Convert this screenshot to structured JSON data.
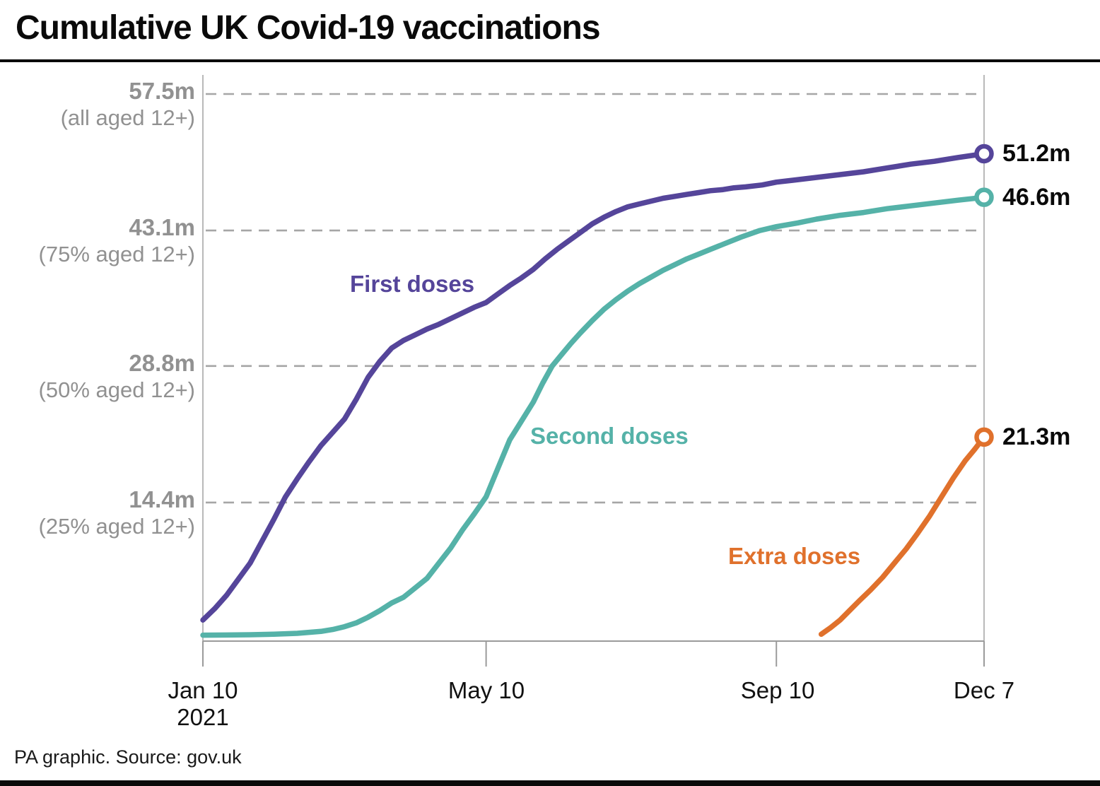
{
  "page": {
    "title": "Cumulative UK Covid-19 vaccinations",
    "footer": "PA graphic. Source: gov.uk"
  },
  "chart_data": {
    "type": "line",
    "title": "Cumulative UK Covid-19 vaccinations",
    "x_unit": "days since Jan 10 2021",
    "x_range_days": [
      0,
      331
    ],
    "x_ticks": [
      {
        "day": 0,
        "label": "Jan 10",
        "sublabel": "2021"
      },
      {
        "day": 120,
        "label": "May 10",
        "sublabel": ""
      },
      {
        "day": 243,
        "label": "Sep 10",
        "sublabel": ""
      },
      {
        "day": 331,
        "label": "Dec 7",
        "sublabel": ""
      }
    ],
    "y_unit": "million doses",
    "y_max": 57.5,
    "grid": "dashed horizontal",
    "y_gridlines": [
      {
        "value": 57.5,
        "label": "57.5m",
        "sublabel": "(all aged 12+)"
      },
      {
        "value": 43.1,
        "label": "43.1m",
        "sublabel": "(75% aged 12+)"
      },
      {
        "value": 28.8,
        "label": "28.8m",
        "sublabel": "(50% aged 12+)"
      },
      {
        "value": 14.4,
        "label": "14.4m",
        "sublabel": "(25% aged 12+)"
      }
    ],
    "colors": {
      "grid": "#a6a6a6",
      "axis": "#9b9b9b",
      "guide": "#b9b9b9",
      "y_label_text": "#919191"
    },
    "series": [
      {
        "name": "First doses",
        "color": "#55459a",
        "end_label": "51.2m",
        "end_value": 51.2,
        "points": [
          [
            0,
            2.0
          ],
          [
            5,
            3.2
          ],
          [
            10,
            4.6
          ],
          [
            15,
            6.3
          ],
          [
            20,
            8.0
          ],
          [
            25,
            10.3
          ],
          [
            30,
            12.6
          ],
          [
            35,
            15.0
          ],
          [
            40,
            16.9
          ],
          [
            45,
            18.7
          ],
          [
            50,
            20.4
          ],
          [
            55,
            21.8
          ],
          [
            60,
            23.2
          ],
          [
            65,
            25.3
          ],
          [
            70,
            27.6
          ],
          [
            75,
            29.3
          ],
          [
            80,
            30.7
          ],
          [
            85,
            31.5
          ],
          [
            90,
            32.1
          ],
          [
            95,
            32.7
          ],
          [
            100,
            33.2
          ],
          [
            105,
            33.8
          ],
          [
            110,
            34.4
          ],
          [
            115,
            35.0
          ],
          [
            120,
            35.5
          ],
          [
            125,
            36.4
          ],
          [
            130,
            37.3
          ],
          [
            135,
            38.1
          ],
          [
            140,
            39.0
          ],
          [
            145,
            40.1
          ],
          [
            150,
            41.1
          ],
          [
            155,
            42.0
          ],
          [
            160,
            42.9
          ],
          [
            165,
            43.8
          ],
          [
            170,
            44.5
          ],
          [
            175,
            45.1
          ],
          [
            180,
            45.6
          ],
          [
            185,
            45.9
          ],
          [
            190,
            46.2
          ],
          [
            195,
            46.5
          ],
          [
            200,
            46.7
          ],
          [
            205,
            46.9
          ],
          [
            210,
            47.1
          ],
          [
            215,
            47.3
          ],
          [
            220,
            47.4
          ],
          [
            225,
            47.6
          ],
          [
            230,
            47.7
          ],
          [
            237,
            47.9
          ],
          [
            243,
            48.2
          ],
          [
            250,
            48.4
          ],
          [
            260,
            48.7
          ],
          [
            270,
            49.0
          ],
          [
            280,
            49.3
          ],
          [
            290,
            49.7
          ],
          [
            300,
            50.1
          ],
          [
            310,
            50.4
          ],
          [
            320,
            50.8
          ],
          [
            331,
            51.2
          ]
        ]
      },
      {
        "name": "Second doses",
        "color": "#55b2a8",
        "end_label": "46.6m",
        "end_value": 46.6,
        "points": [
          [
            0,
            0.4
          ],
          [
            10,
            0.42
          ],
          [
            20,
            0.45
          ],
          [
            30,
            0.5
          ],
          [
            40,
            0.6
          ],
          [
            50,
            0.8
          ],
          [
            55,
            1.0
          ],
          [
            60,
            1.3
          ],
          [
            65,
            1.7
          ],
          [
            70,
            2.3
          ],
          [
            75,
            3.0
          ],
          [
            80,
            3.8
          ],
          [
            85,
            4.4
          ],
          [
            88,
            5.0
          ],
          [
            95,
            6.4
          ],
          [
            100,
            8.0
          ],
          [
            105,
            9.6
          ],
          [
            110,
            11.5
          ],
          [
            115,
            13.2
          ],
          [
            120,
            15.0
          ],
          [
            125,
            18.0
          ],
          [
            130,
            21.0
          ],
          [
            135,
            23.0
          ],
          [
            140,
            25.0
          ],
          [
            144,
            27.0
          ],
          [
            148,
            28.8
          ],
          [
            152,
            30.0
          ],
          [
            156,
            31.2
          ],
          [
            160,
            32.3
          ],
          [
            165,
            33.6
          ],
          [
            170,
            34.8
          ],
          [
            175,
            35.8
          ],
          [
            180,
            36.7
          ],
          [
            185,
            37.5
          ],
          [
            190,
            38.2
          ],
          [
            195,
            38.9
          ],
          [
            200,
            39.5
          ],
          [
            205,
            40.1
          ],
          [
            210,
            40.6
          ],
          [
            215,
            41.1
          ],
          [
            220,
            41.6
          ],
          [
            228,
            42.4
          ],
          [
            236,
            43.1
          ],
          [
            243,
            43.5
          ],
          [
            252,
            43.9
          ],
          [
            260,
            44.3
          ],
          [
            270,
            44.7
          ],
          [
            280,
            45.0
          ],
          [
            290,
            45.4
          ],
          [
            300,
            45.7
          ],
          [
            310,
            46.0
          ],
          [
            320,
            46.3
          ],
          [
            331,
            46.6
          ]
        ]
      },
      {
        "name": "Extra doses",
        "color": "#e0712c",
        "end_label": "21.3m",
        "end_value": 21.3,
        "points": [
          [
            262,
            0.5
          ],
          [
            266,
            1.2
          ],
          [
            270,
            2.0
          ],
          [
            274,
            3.0
          ],
          [
            278,
            4.0
          ],
          [
            283,
            5.2
          ],
          [
            288,
            6.5
          ],
          [
            293,
            8.0
          ],
          [
            298,
            9.5
          ],
          [
            303,
            11.2
          ],
          [
            308,
            13.0
          ],
          [
            313,
            15.0
          ],
          [
            318,
            17.0
          ],
          [
            323,
            18.8
          ],
          [
            327,
            20.0
          ],
          [
            331,
            21.3
          ]
        ]
      }
    ],
    "legend_position": "labels beside lines",
    "end_markers": "open circles"
  }
}
